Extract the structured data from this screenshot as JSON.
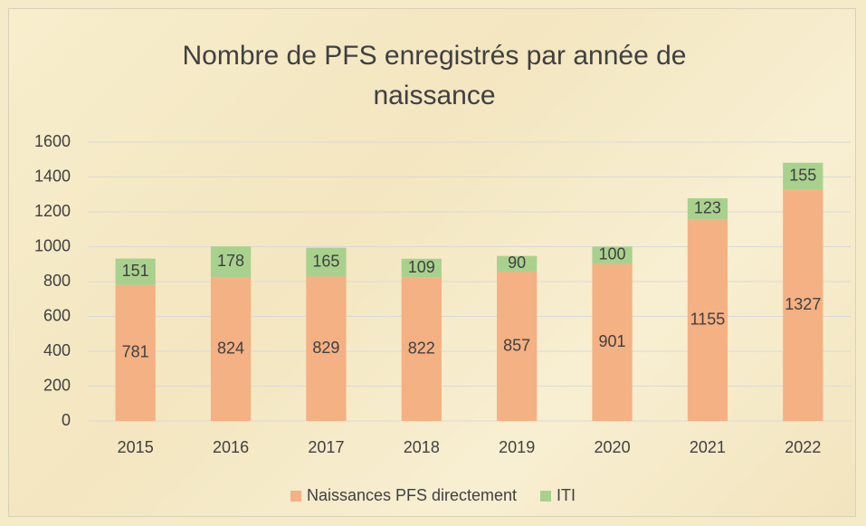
{
  "chart_data": {
    "type": "stacked_bar",
    "title": "Nombre de PFS enregistrés par année de naissance",
    "categories": [
      "2015",
      "2016",
      "2017",
      "2018",
      "2019",
      "2020",
      "2021",
      "2022"
    ],
    "series": [
      {
        "name": "Naissances PFS directement",
        "color": "#f4b183",
        "values": [
          781,
          824,
          829,
          822,
          857,
          901,
          1155,
          1327
        ]
      },
      {
        "name": "ITI",
        "color": "#a9d18e",
        "values": [
          151,
          178,
          165,
          109,
          90,
          100,
          123,
          155
        ]
      }
    ],
    "ylim": [
      0,
      1600
    ],
    "yticks": [
      0,
      200,
      400,
      600,
      800,
      1000,
      1200,
      1400,
      1600
    ],
    "grid": true,
    "legend": "bottom"
  }
}
